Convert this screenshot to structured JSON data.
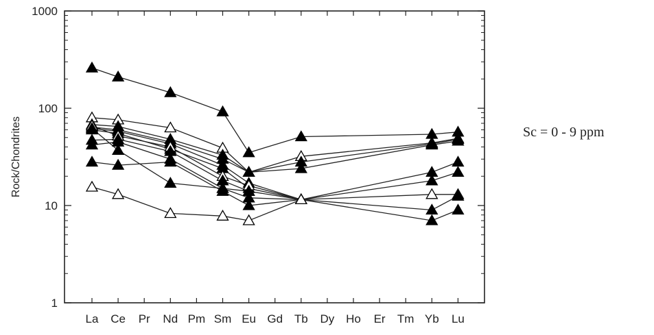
{
  "chart_data": {
    "type": "line",
    "y_scale": "log",
    "ylim": [
      1,
      1000
    ],
    "yticks": [
      "1",
      "10",
      "100",
      "1000"
    ],
    "ylabel": "Rock/Chondrites",
    "xlabel": "",
    "categories": [
      "La",
      "Ce",
      "Pr",
      "Nd",
      "Pm",
      "Sm",
      "Eu",
      "Gd",
      "Tb",
      "Dy",
      "Ho",
      "Er",
      "Tm",
      "Yb",
      "Lu"
    ],
    "annotation": "Sc = 0 - 9 ppm",
    "grid": false,
    "marker_styles": {
      "filled": "#000000",
      "open": "#ffffff"
    },
    "series": [
      {
        "marker": "filled",
        "values": [
          260,
          210,
          null,
          145,
          null,
          92,
          35,
          null,
          51,
          null,
          null,
          null,
          null,
          54,
          57
        ]
      },
      {
        "marker": "open",
        "values": [
          80,
          76,
          null,
          63,
          null,
          39,
          22,
          null,
          32,
          null,
          null,
          null,
          null,
          44,
          49
        ]
      },
      {
        "marker": "filled",
        "values": [
          68,
          65,
          null,
          48,
          null,
          33,
          22,
          null,
          28,
          null,
          null,
          null,
          null,
          43,
          48
        ]
      },
      {
        "marker": "filled",
        "values": [
          64,
          60,
          null,
          45,
          null,
          30,
          22,
          null,
          24,
          null,
          null,
          null,
          null,
          42,
          46
        ]
      },
      {
        "marker": "filled",
        "values": [
          62,
          58,
          null,
          43,
          null,
          26,
          17,
          null,
          11.5,
          null,
          null,
          null,
          null,
          22,
          28
        ]
      },
      {
        "marker": "filled",
        "values": [
          60,
          55,
          null,
          38,
          null,
          24,
          15,
          null,
          11.5,
          null,
          null,
          null,
          null,
          18,
          22
        ]
      },
      {
        "marker": "open",
        "values": [
          66,
          52,
          null,
          40,
          null,
          20,
          16,
          null,
          11.5,
          null,
          null,
          null,
          null,
          13,
          13
        ]
      },
      {
        "marker": "filled",
        "values": [
          47,
          48,
          null,
          36,
          null,
          18,
          14,
          null,
          11.5,
          null,
          null,
          null,
          null,
          9,
          12.5
        ]
      },
      {
        "marker": "filled",
        "values": [
          42,
          45,
          null,
          30,
          null,
          15,
          12,
          null,
          11.5,
          null,
          null,
          null,
          null,
          7,
          9
        ]
      },
      {
        "marker": "filled",
        "values": [
          28,
          26,
          null,
          28,
          null,
          14,
          10,
          null,
          11.5,
          null,
          null,
          null,
          null,
          null,
          null
        ]
      },
      {
        "marker": "filled",
        "values": [
          62,
          37,
          null,
          17,
          null,
          15,
          14,
          null,
          null,
          null,
          null,
          null,
          null,
          null,
          null
        ]
      },
      {
        "marker": "open",
        "values": [
          15.5,
          13,
          null,
          8.3,
          null,
          7.8,
          7,
          null,
          11.5,
          null,
          null,
          null,
          null,
          null,
          null
        ]
      }
    ]
  }
}
